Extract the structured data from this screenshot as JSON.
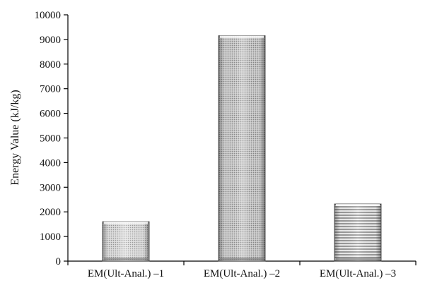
{
  "chart_data": {
    "type": "bar",
    "title": "",
    "xlabel": "",
    "ylabel": "Energy Value (kJ/kg)",
    "ylim": [
      0,
      10000
    ],
    "yticks": [
      0,
      1000,
      2000,
      3000,
      4000,
      5000,
      6000,
      7000,
      8000,
      9000,
      10000
    ],
    "categories": [
      "EM(Ult-Anal.) –1",
      "EM(Ult-Anal.) –2",
      "EM(Ult-Anal.) –3"
    ],
    "values": [
      1600,
      9150,
      2320
    ],
    "grid": false,
    "legend": "none",
    "bar_patterns": [
      "dots-fine",
      "dots-dense",
      "horizontal-lines"
    ]
  }
}
